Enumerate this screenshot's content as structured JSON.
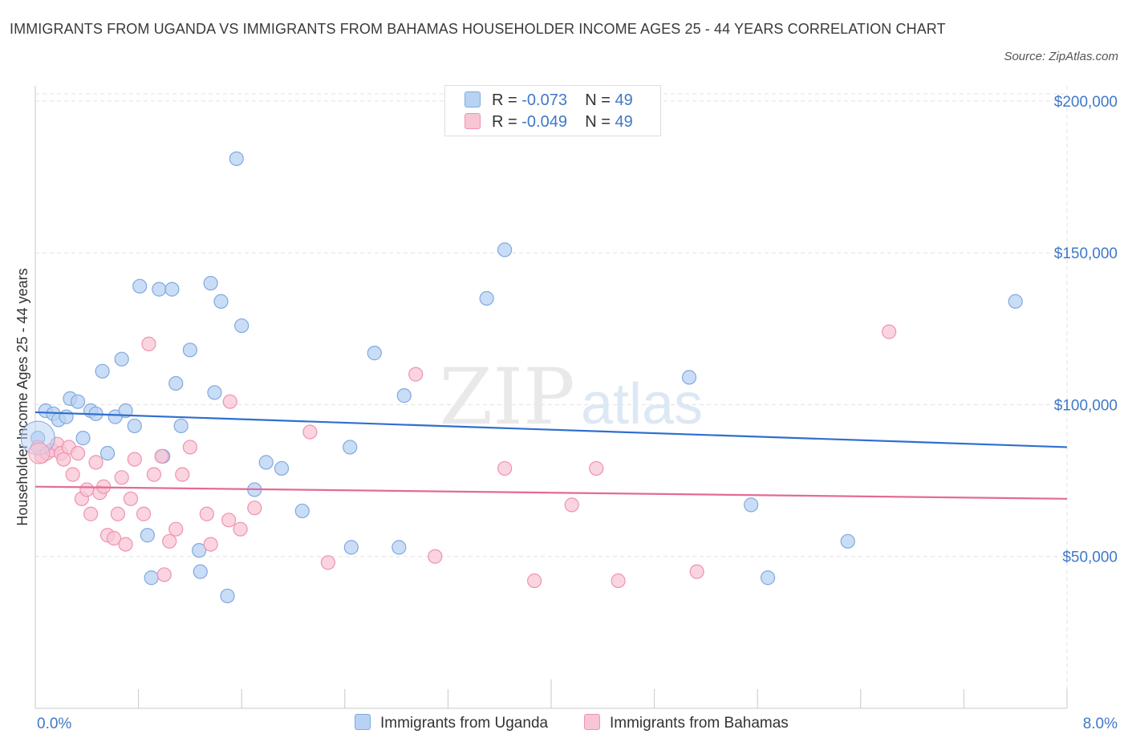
{
  "title": "IMMIGRANTS FROM UGANDA VS IMMIGRANTS FROM BAHAMAS HOUSEHOLDER INCOME AGES 25 - 44 YEARS CORRELATION CHART",
  "source": "Source: ZipAtlas.com",
  "watermark": {
    "zip": "ZIP",
    "atlas": "atlas"
  },
  "colors": {
    "uganda_fill": "#b8d2f3",
    "uganda_stroke": "#7fa9e0",
    "uganda_line": "#2f6fcf",
    "bahamas_fill": "#f8c5d4",
    "bahamas_stroke": "#ee93b0",
    "bahamas_line": "#e36b95",
    "tick_label": "#3f78c8",
    "grid": "#e3e3e3"
  },
  "legend_top": [
    {
      "r_label": "R = ",
      "r_value": "-0.073",
      "n_label": "N = ",
      "n_value": "49",
      "color_key": "uganda"
    },
    {
      "r_label": "R = ",
      "r_value": "-0.049",
      "n_label": "N = ",
      "n_value": "49",
      "color_key": "bahamas"
    }
  ],
  "legend_bottom": [
    {
      "label": "Immigrants from Uganda",
      "color_key": "uganda"
    },
    {
      "label": "Immigrants from Bahamas",
      "color_key": "bahamas"
    }
  ],
  "chart_data": {
    "type": "scatter",
    "title": "IMMIGRANTS FROM UGANDA VS IMMIGRANTS FROM BAHAMAS HOUSEHOLDER INCOME AGES 25 - 44 YEARS CORRELATION CHART",
    "xlabel": "",
    "ylabel": "Householder Income Ages 25 - 44 years",
    "xlim": [
      0,
      8
    ],
    "ylim": [
      0,
      205000
    ],
    "x_tick_labels": [
      "0.0%",
      "8.0%"
    ],
    "y_ticks": [
      50000,
      100000,
      150000,
      200000
    ],
    "y_tick_labels": [
      "$50,000",
      "$100,000",
      "$150,000",
      "$200,000"
    ],
    "grid": true,
    "legend_position": "top-center",
    "series": [
      {
        "name": "Immigrants from Uganda",
        "r": -0.073,
        "n": 49,
        "trend": {
          "x": [
            0,
            8
          ],
          "y": [
            97500,
            86000
          ]
        },
        "points": [
          [
            0.02,
            89000
          ],
          [
            0.08,
            98000
          ],
          [
            0.14,
            97000
          ],
          [
            0.18,
            95000
          ],
          [
            0.24,
            96000
          ],
          [
            0.27,
            102000
          ],
          [
            0.33,
            101000
          ],
          [
            0.37,
            89000
          ],
          [
            0.43,
            98000
          ],
          [
            0.47,
            97000
          ],
          [
            0.52,
            111000
          ],
          [
            0.56,
            84000
          ],
          [
            0.62,
            96000
          ],
          [
            0.67,
            115000
          ],
          [
            0.7,
            98000
          ],
          [
            0.77,
            93000
          ],
          [
            0.81,
            139000
          ],
          [
            0.87,
            57000
          ],
          [
            0.9,
            43000
          ],
          [
            0.96,
            138000
          ],
          [
            0.99,
            83000
          ],
          [
            1.06,
            138000
          ],
          [
            1.09,
            107000
          ],
          [
            1.13,
            93000
          ],
          [
            1.2,
            118000
          ],
          [
            1.27,
            52000
          ],
          [
            1.28,
            45000
          ],
          [
            1.36,
            140000
          ],
          [
            1.39,
            104000
          ],
          [
            1.44,
            134000
          ],
          [
            1.49,
            37000
          ],
          [
            1.56,
            181000
          ],
          [
            1.6,
            126000
          ],
          [
            1.7,
            72000
          ],
          [
            1.79,
            81000
          ],
          [
            1.91,
            79000
          ],
          [
            2.07,
            65000
          ],
          [
            2.44,
            86000
          ],
          [
            2.45,
            53000
          ],
          [
            2.63,
            117000
          ],
          [
            2.82,
            53000
          ],
          [
            2.86,
            103000
          ],
          [
            3.5,
            135000
          ],
          [
            3.64,
            151000
          ],
          [
            5.07,
            109000
          ],
          [
            5.55,
            67000
          ],
          [
            5.68,
            43000
          ],
          [
            6.3,
            55000
          ],
          [
            7.6,
            134000
          ]
        ]
      },
      {
        "name": "Immigrants from Bahamas",
        "r": -0.049,
        "n": 49,
        "trend": {
          "x": [
            0,
            8
          ],
          "y": [
            73000,
            69000
          ]
        },
        "points": [
          [
            0.02,
            86000
          ],
          [
            0.05,
            83000
          ],
          [
            0.09,
            84000
          ],
          [
            0.13,
            85000
          ],
          [
            0.17,
            87000
          ],
          [
            0.2,
            84000
          ],
          [
            0.22,
            82000
          ],
          [
            0.26,
            86000
          ],
          [
            0.29,
            77000
          ],
          [
            0.33,
            84000
          ],
          [
            0.36,
            69000
          ],
          [
            0.4,
            72000
          ],
          [
            0.43,
            64000
          ],
          [
            0.47,
            81000
          ],
          [
            0.5,
            71000
          ],
          [
            0.53,
            73000
          ],
          [
            0.56,
            57000
          ],
          [
            0.61,
            56000
          ],
          [
            0.64,
            64000
          ],
          [
            0.67,
            76000
          ],
          [
            0.7,
            54000
          ],
          [
            0.74,
            69000
          ],
          [
            0.77,
            82000
          ],
          [
            0.84,
            64000
          ],
          [
            0.88,
            120000
          ],
          [
            0.92,
            77000
          ],
          [
            0.98,
            83000
          ],
          [
            1.0,
            44000
          ],
          [
            1.04,
            55000
          ],
          [
            1.09,
            59000
          ],
          [
            1.14,
            77000
          ],
          [
            1.2,
            86000
          ],
          [
            1.33,
            64000
          ],
          [
            1.36,
            54000
          ],
          [
            1.5,
            62000
          ],
          [
            1.51,
            101000
          ],
          [
            1.59,
            59000
          ],
          [
            1.7,
            66000
          ],
          [
            2.13,
            91000
          ],
          [
            2.27,
            48000
          ],
          [
            2.95,
            110000
          ],
          [
            3.1,
            50000
          ],
          [
            3.64,
            79000
          ],
          [
            3.87,
            42000
          ],
          [
            4.16,
            67000
          ],
          [
            4.35,
            79000
          ],
          [
            4.52,
            42000
          ],
          [
            5.13,
            45000
          ],
          [
            6.62,
            124000
          ]
        ]
      }
    ]
  }
}
